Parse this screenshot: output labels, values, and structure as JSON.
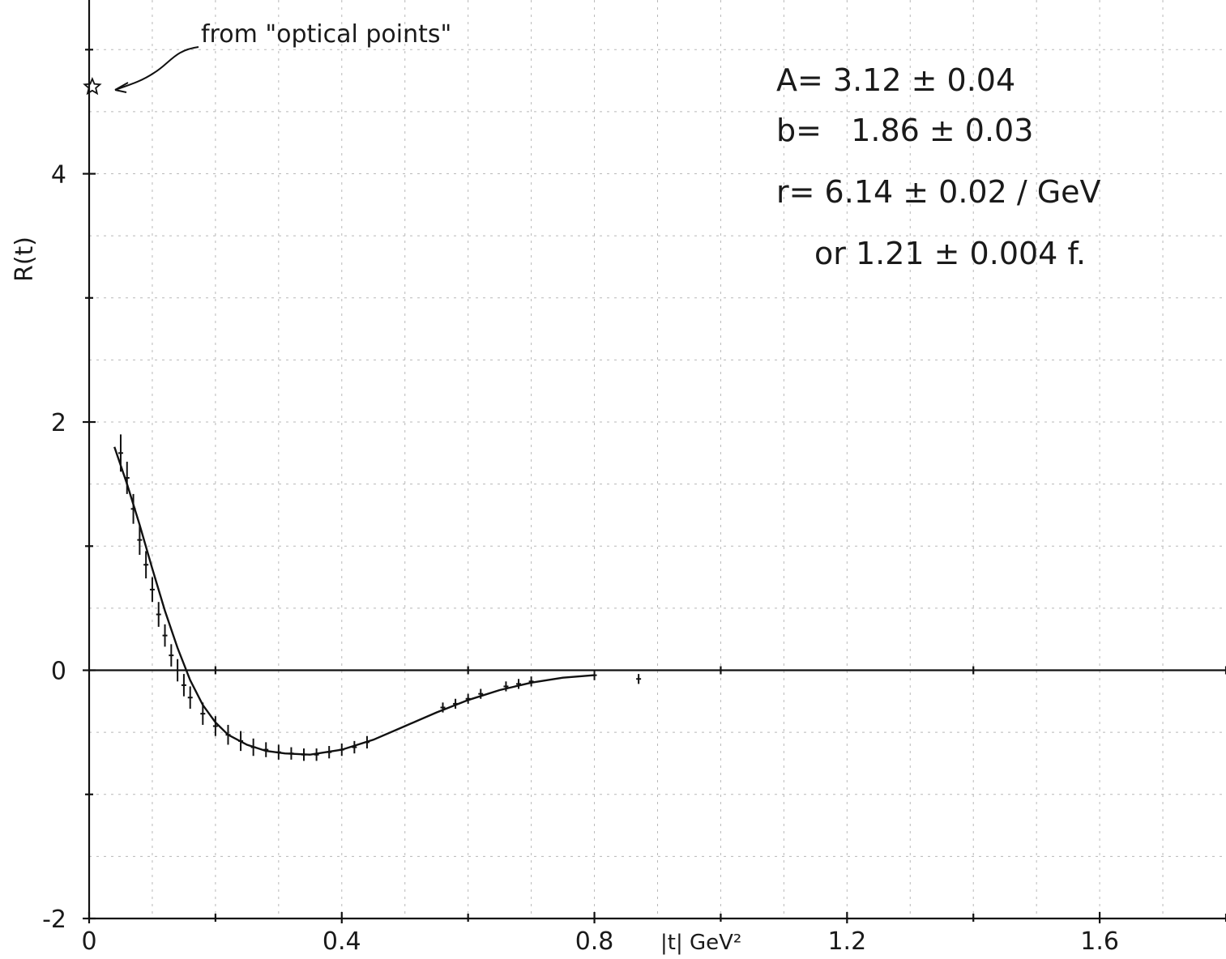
{
  "chart_data": {
    "type": "scatter",
    "title": "",
    "xlabel": "|t| GeV²",
    "ylabel": "R(t)",
    "xlim": [
      0,
      1.8
    ],
    "ylim": [
      -2,
      5.4
    ],
    "x_ticks": [
      "0",
      "0.4",
      "0.8",
      "1.2",
      "1.6"
    ],
    "y_ticks": [
      "-2",
      "0",
      "2",
      "4"
    ],
    "grid": true,
    "annotation": "from \"optical points\"",
    "optical_point": {
      "x": 0.005,
      "y": 4.7
    },
    "fit_params": {
      "line1": "A= 3.12 ± 0.04",
      "line2": "b=   1.86 ± 0.03",
      "line3": "r= 6.14 ± 0.02 / GeV",
      "line4": "or 1.21 ± 0.004 f."
    },
    "points": [
      {
        "x": 0.05,
        "y": 1.75,
        "err": 0.15
      },
      {
        "x": 0.06,
        "y": 1.55,
        "err": 0.13
      },
      {
        "x": 0.07,
        "y": 1.3,
        "err": 0.12
      },
      {
        "x": 0.08,
        "y": 1.05,
        "err": 0.12
      },
      {
        "x": 0.09,
        "y": 0.85,
        "err": 0.11
      },
      {
        "x": 0.1,
        "y": 0.65,
        "err": 0.1
      },
      {
        "x": 0.11,
        "y": 0.45,
        "err": 0.1
      },
      {
        "x": 0.12,
        "y": 0.28,
        "err": 0.09
      },
      {
        "x": 0.13,
        "y": 0.12,
        "err": 0.09
      },
      {
        "x": 0.14,
        "y": 0.0,
        "err": 0.09
      },
      {
        "x": 0.15,
        "y": -0.12,
        "err": 0.09
      },
      {
        "x": 0.16,
        "y": -0.22,
        "err": 0.09
      },
      {
        "x": 0.18,
        "y": -0.35,
        "err": 0.09
      },
      {
        "x": 0.2,
        "y": -0.45,
        "err": 0.08
      },
      {
        "x": 0.22,
        "y": -0.52,
        "err": 0.08
      },
      {
        "x": 0.24,
        "y": -0.57,
        "err": 0.08
      },
      {
        "x": 0.26,
        "y": -0.62,
        "err": 0.07
      },
      {
        "x": 0.28,
        "y": -0.64,
        "err": 0.06
      },
      {
        "x": 0.3,
        "y": -0.66,
        "err": 0.06
      },
      {
        "x": 0.32,
        "y": -0.67,
        "err": 0.05
      },
      {
        "x": 0.34,
        "y": -0.68,
        "err": 0.05
      },
      {
        "x": 0.36,
        "y": -0.68,
        "err": 0.05
      },
      {
        "x": 0.38,
        "y": -0.66,
        "err": 0.05
      },
      {
        "x": 0.4,
        "y": -0.64,
        "err": 0.05
      },
      {
        "x": 0.42,
        "y": -0.62,
        "err": 0.05
      },
      {
        "x": 0.44,
        "y": -0.58,
        "err": 0.05
      },
      {
        "x": 0.56,
        "y": -0.3,
        "err": 0.04
      },
      {
        "x": 0.58,
        "y": -0.27,
        "err": 0.04
      },
      {
        "x": 0.6,
        "y": -0.23,
        "err": 0.04
      },
      {
        "x": 0.62,
        "y": -0.19,
        "err": 0.04
      },
      {
        "x": 0.66,
        "y": -0.13,
        "err": 0.04
      },
      {
        "x": 0.68,
        "y": -0.11,
        "err": 0.04
      },
      {
        "x": 0.7,
        "y": -0.09,
        "err": 0.04
      },
      {
        "x": 0.8,
        "y": -0.04,
        "err": 0.04
      },
      {
        "x": 0.87,
        "y": -0.07,
        "err": 0.04
      }
    ],
    "fit_curve": [
      [
        0.04,
        1.8
      ],
      [
        0.06,
        1.5
      ],
      [
        0.08,
        1.17
      ],
      [
        0.1,
        0.82
      ],
      [
        0.12,
        0.48
      ],
      [
        0.14,
        0.18
      ],
      [
        0.16,
        -0.08
      ],
      [
        0.18,
        -0.28
      ],
      [
        0.2,
        -0.42
      ],
      [
        0.22,
        -0.52
      ],
      [
        0.25,
        -0.6
      ],
      [
        0.28,
        -0.65
      ],
      [
        0.31,
        -0.67
      ],
      [
        0.35,
        -0.68
      ],
      [
        0.4,
        -0.64
      ],
      [
        0.45,
        -0.56
      ],
      [
        0.5,
        -0.45
      ],
      [
        0.55,
        -0.34
      ],
      [
        0.6,
        -0.24
      ],
      [
        0.65,
        -0.16
      ],
      [
        0.7,
        -0.1
      ],
      [
        0.75,
        -0.06
      ],
      [
        0.8,
        -0.04
      ]
    ]
  }
}
